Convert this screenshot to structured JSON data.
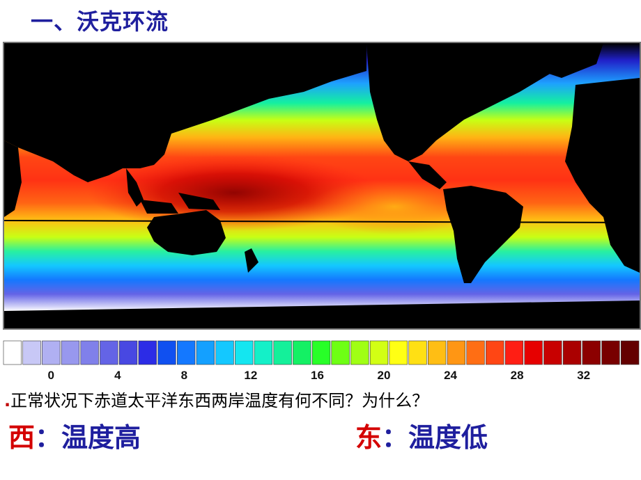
{
  "title": "一、沃克环流",
  "legend": {
    "colors": [
      "#ffffff",
      "#c8c8f6",
      "#b0b0f2",
      "#9898ee",
      "#8080ea",
      "#6464e6",
      "#4848e2",
      "#2c2ce6",
      "#1050f0",
      "#1478ff",
      "#14a0ff",
      "#14c8ff",
      "#14e6f0",
      "#14f0c8",
      "#14f09a",
      "#14f064",
      "#28ff28",
      "#6eff14",
      "#a0ff14",
      "#d2ff14",
      "#ffff14",
      "#ffe014",
      "#ffbe14",
      "#ff9614",
      "#ff6e14",
      "#ff4614",
      "#ff1e14",
      "#e60000",
      "#c80000",
      "#aa0000",
      "#8c0000",
      "#780000",
      "#640000"
    ],
    "tick_labels": [
      "0",
      "4",
      "8",
      "12",
      "16",
      "20",
      "24",
      "28",
      "32"
    ]
  },
  "question": {
    "marker": ".",
    "text": "正常状况下赤道太平洋东西两岸温度有何不同？为什么？"
  },
  "answers": {
    "west": {
      "dir": "西",
      "sep": "：",
      "val": "温度高"
    },
    "east": {
      "dir": "东",
      "sep": "：",
      "val": "温度低"
    }
  }
}
